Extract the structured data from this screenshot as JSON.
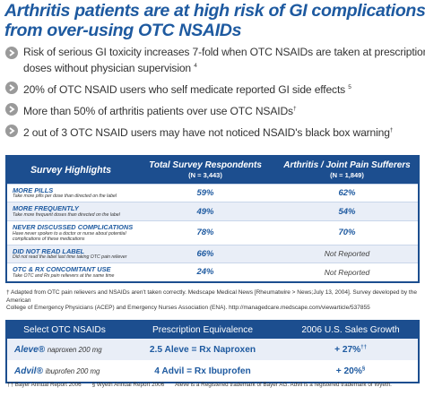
{
  "title_line1": "Arthritis patients are at high risk of GI complications",
  "title_line2": "from over-using OTC NSAIDs",
  "bullets": [
    {
      "text": "Risk of serious GI toxicity increases 7-fold when OTC NSAIDs are taken at prescription",
      "text2": "doses without physician supervision",
      "ref": "4"
    },
    {
      "text": "20% of OTC NSAID users who self medicate reported GI side effects",
      "ref": "5"
    },
    {
      "text": "More than 50% of arthritis patients over use OTC NSAIDs",
      "ref": "†"
    },
    {
      "text": "2 out of 3 OTC NSAID users may have not noticed NSAID's black box warning",
      "ref": "†"
    }
  ],
  "survey": {
    "headers": {
      "col1": "Survey Highlights",
      "col2": "Total Survey Respondents",
      "col2_n": "(N = 3,443)",
      "col3": "Arthritis / Joint Pain Sufferers",
      "col3_n": "(N = 1,849)"
    },
    "rows": [
      {
        "label": "MORE PILLS",
        "sub": "Take more pills per dose than directed on the label",
        "total": "59%",
        "arthritis": "62%"
      },
      {
        "label": "MORE FREQUENTLY",
        "sub": "Take more frequent doses than directed on the label",
        "total": "49%",
        "arthritis": "54%"
      },
      {
        "label": "NEVER DISCUSSED COMPLICATIONS",
        "sub": "Have never spoken to a doctor or nurse about potential complications of these medications",
        "total": "78%",
        "arthritis": "70%"
      },
      {
        "label": "DID NOT READ LABEL",
        "sub": "Did not read the label last time taking OTC pain reliever",
        "total": "66%",
        "arthritis": "Not Reported"
      },
      {
        "label": "OTC & Rx CONCOMITANT USE",
        "sub": "Take OTC and Rx pain relievers at the same time",
        "total": "24%",
        "arthritis": "Not Reported"
      }
    ]
  },
  "footnote_line1": "† Adapted from OTC pain relievers and NSAIDs aren't taken correctly. Medscape Medical News [Rheumatwire > News;July 13, 2004]. Survey developed by the American",
  "footnote_line2": "College of Emergency Physicians (ACEP) and Emergency Nurses Association (ENA). http://managedcare.medscape.com/viewarticle/537855",
  "otc": {
    "headers": {
      "col1": "Select OTC NSAIDs",
      "col2": "Prescription Equivalence",
      "col3": "2006 U.S. Sales Growth"
    },
    "rows": [
      {
        "name": "Aleve®",
        "dose": "naproxen 200 mg",
        "equiv": "2.5 Aleve = Rx Naproxen",
        "growth": "+ 27%",
        "ref": "††"
      },
      {
        "name": "Advil®",
        "dose": "ibuprofen 200 mg",
        "equiv": "4 Advil = Rx Ibuprofen",
        "growth": "+ 20%",
        "ref": "§"
      }
    ]
  },
  "bottom_notes": {
    "n1": "†† Bayer Annual Report 2006",
    "n2": "§ Wyeth Annual Report 2006",
    "n3": "Aleve is a Registered trademark of Bayer AG. Advil is a registered trademark of Wyeth."
  }
}
